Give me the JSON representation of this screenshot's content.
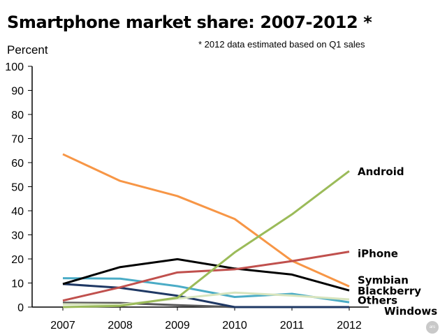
{
  "header": {
    "title": "Smartphone market share: 2007-2012 *",
    "note": "* 2012 data estimated based on Q1 sales"
  },
  "logo": {
    "text": "ars",
    "icon": "ars-logo-icon"
  },
  "chart_data": {
    "type": "line",
    "title": "Smartphone market share: 2007-2012 *",
    "xlabel": "",
    "ylabel": "Percent",
    "x": [
      "2007",
      "2008",
      "2009",
      "2010",
      "2011",
      "2012"
    ],
    "yticks": [
      0,
      10,
      20,
      30,
      40,
      50,
      60,
      70,
      80,
      90,
      100
    ],
    "ylim": [
      0,
      100
    ],
    "grid": false,
    "legend": "direct labels at line ends (right)",
    "series": [
      {
        "name": "Android",
        "color": "#9bbb59",
        "values": [
          0,
          0.5,
          3.9,
          22.7,
          38.5,
          56.5
        ],
        "label_y": 56.5
      },
      {
        "name": "iPhone",
        "color": "#c0504d",
        "values": [
          2.7,
          8.2,
          14.4,
          15.7,
          19.1,
          23.0
        ],
        "label_y": 22.5
      },
      {
        "name": "Symbian",
        "color": "#f79646",
        "values": [
          63.5,
          52.4,
          46.1,
          36.6,
          19.2,
          8.6
        ],
        "label_y": 11.5
      },
      {
        "name": "Blackberry",
        "color": "#000000",
        "values": [
          9.6,
          16.6,
          19.9,
          16.0,
          13.5,
          6.9
        ],
        "label_y": 7.0
      },
      {
        "name": "Others",
        "color": "#d7e4bd",
        "values": [
          1.2,
          1.0,
          3.5,
          6.0,
          4.8,
          3.2
        ],
        "label_y": 3.0
      },
      {
        "name": "Windows",
        "color": "#4bacc6",
        "values": [
          12.0,
          11.8,
          8.7,
          4.2,
          5.5,
          2.0
        ],
        "label_y": -1.5
      },
      {
        "name": "",
        "color": "#1f3864",
        "values": [
          9.6,
          8.0,
          4.7,
          0,
          0,
          0
        ]
      },
      {
        "name": "",
        "color": "#595959",
        "values": [
          1.8,
          1.7,
          0.8,
          0,
          0,
          0
        ]
      }
    ]
  }
}
